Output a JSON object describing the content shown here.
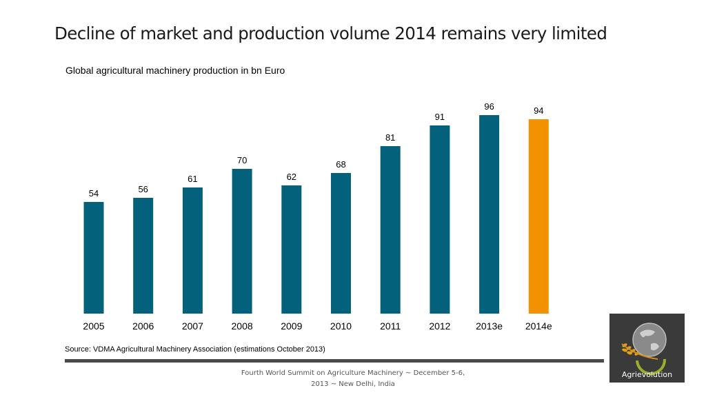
{
  "slide": {
    "title": "Decline of market and production volume 2014 remains very limited",
    "source": "Source: VDMA Agricultural Machinery Association (estimations October 2013)",
    "footer": "Fourth World Summit on Agriculture Machinery ~ December 5-6, 2013 ~ New Delhi, India",
    "logo_text": "Agrievolution"
  },
  "chart_data": {
    "type": "bar",
    "title": "Global agricultural machinery production in bn Euro",
    "categories": [
      "2005",
      "2006",
      "2007",
      "2008",
      "2009",
      "2010",
      "2011",
      "2012",
      "2013e",
      "2014e"
    ],
    "values": [
      54,
      56,
      61,
      70,
      62,
      68,
      81,
      91,
      96,
      94
    ],
    "colors": [
      "#04617b",
      "#04617b",
      "#04617b",
      "#04617b",
      "#04617b",
      "#04617b",
      "#04617b",
      "#04617b",
      "#04617b",
      "#f39200"
    ],
    "xlabel": "",
    "ylabel": "",
    "grid": false,
    "data_labels": true
  }
}
